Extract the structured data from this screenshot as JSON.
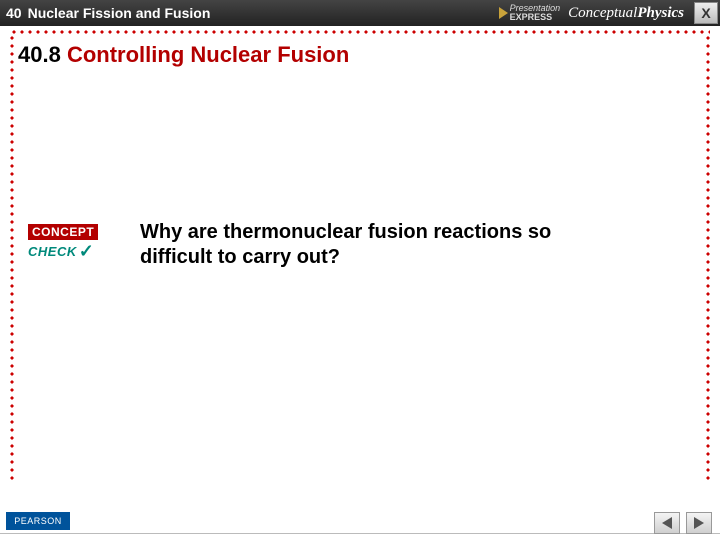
{
  "header": {
    "chapter_number": "40",
    "chapter_title": "Nuclear Fission and Fusion",
    "presentation_label_top": "Presentation",
    "presentation_label_bottom": "EXPRESS",
    "book_title_prefix": "Conceptual",
    "book_title_main": "Physics",
    "close_label": "X"
  },
  "section": {
    "number": "40.8",
    "title": "Controlling Nuclear Fusion"
  },
  "concept_check": {
    "concept_label": "CONCEPT",
    "check_label": "CHECK",
    "mark": "✓"
  },
  "question": {
    "text": "Why are thermonuclear fusion reactions so difficult to carry out?"
  },
  "footer": {
    "publisher": "PEARSON"
  },
  "colors": {
    "accent_red": "#b30000",
    "dot_red": "#c00",
    "teal": "#00897b",
    "header_bg": "#2b2b2b",
    "pearson_blue": "#00539b"
  }
}
